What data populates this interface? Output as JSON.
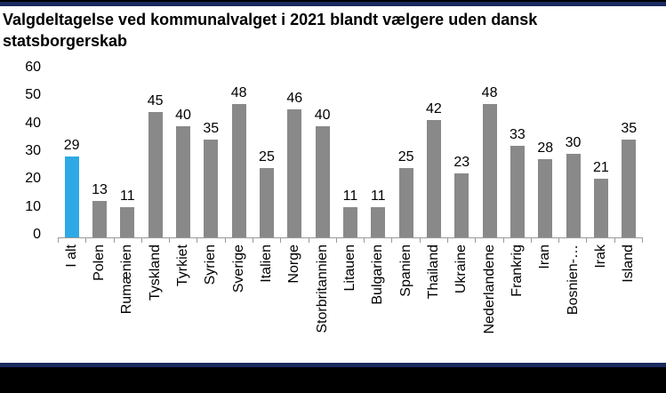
{
  "chart_data": {
    "type": "bar",
    "title": "Valgdeltagelse ved kommunalvalget i 2021 blandt vælgere uden dansk statsborgerskab",
    "categories": [
      "I alt",
      "Polen",
      "Rumænien",
      "Tyskland",
      "Tyrkiet",
      "Syrien",
      "Sverige",
      "Italien",
      "Norge",
      "Storbritannien",
      "Litauen",
      "Bulgarien",
      "Spanien",
      "Thailand",
      "Ukraine",
      "Nederlandene",
      "Frankrig",
      "Iran",
      "Bosnien-…",
      "Irak",
      "Island"
    ],
    "values": [
      29,
      13,
      11,
      45,
      40,
      35,
      48,
      25,
      46,
      40,
      11,
      11,
      25,
      42,
      23,
      48,
      33,
      28,
      30,
      21,
      35
    ],
    "data_labels": [
      29,
      13,
      11,
      45,
      40,
      35,
      48,
      25,
      46,
      40,
      11,
      11,
      25,
      42,
      23,
      48,
      33,
      28,
      30,
      21,
      35
    ],
    "highlight_index": 0,
    "xlabel": "",
    "ylabel": "",
    "ylim": [
      0,
      60
    ],
    "y_ticks": [
      0,
      10,
      20,
      30,
      40,
      50,
      60
    ],
    "grid": false,
    "legend": "none",
    "x_label_rotation_degrees": 90
  },
  "colors": {
    "highlight_bar": "#2ea9e6",
    "default_bar": "#898989",
    "axis_line": "#9a9a9a",
    "text": "#000000",
    "border_navy": "#1b2a5e",
    "border_black": "#000000",
    "background": "#ffffff"
  }
}
